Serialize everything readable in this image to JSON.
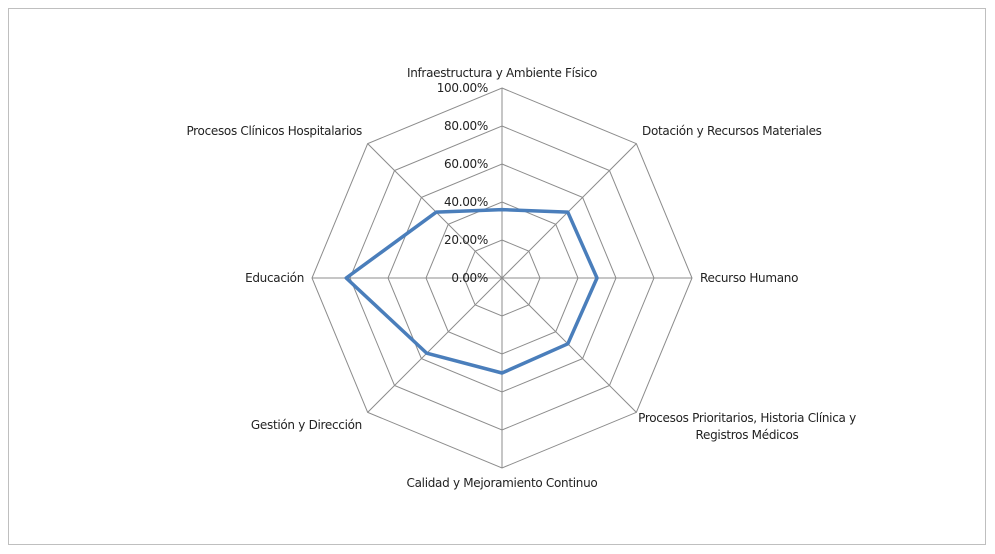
{
  "chart_data": {
    "type": "radar",
    "categories": [
      "Infraestructura y Ambiente Físico",
      "Dotación y Recursos Materiales",
      "Recurso Humano",
      "Procesos Prioritarios, Historia Clínica y Registros Médicos",
      "Calidad y Mejoramiento Continuo",
      "Gestión y Dirección",
      "Educación",
      "Procesos Clínicos Hospitalarios"
    ],
    "series": [
      {
        "name": null,
        "color": "#4a7ebb",
        "values": [
          36,
          49,
          50,
          49,
          50,
          56,
          82,
          49
        ]
      }
    ],
    "ylim": [
      0,
      100
    ],
    "yticks": [
      {
        "value": 0,
        "label": "0.00%"
      },
      {
        "value": 20,
        "label": "20.00%"
      },
      {
        "value": 40,
        "label": "40.00%"
      },
      {
        "value": 60,
        "label": "60.00%"
      },
      {
        "value": 80,
        "label": "80.00%"
      },
      {
        "value": 100,
        "label": "100.00%"
      }
    ],
    "grid": true
  }
}
